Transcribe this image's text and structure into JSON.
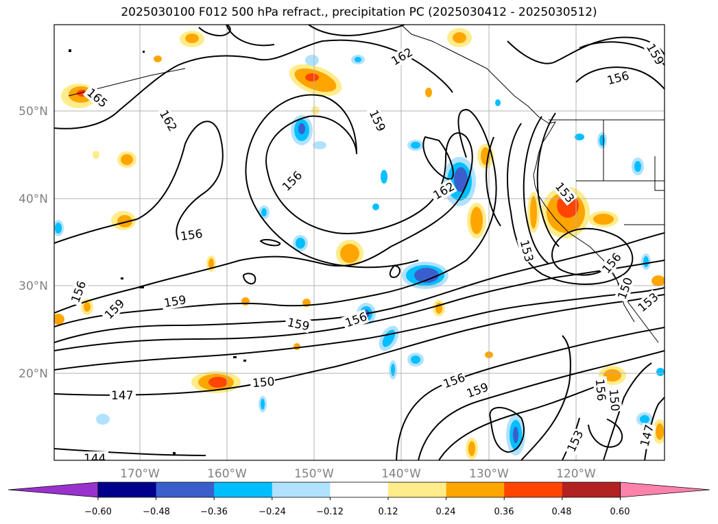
{
  "title": "2025030100 F012 500 hPa refract., precipitation PC (2025030412 - 2025030512)",
  "map": {
    "lat_labels": [
      "50°N",
      "40°N",
      "30°N",
      "20°N"
    ],
    "lon_labels": [
      "170°W",
      "160°W",
      "150°W",
      "140°W",
      "130°W",
      "120°W"
    ],
    "contour_labels": [
      "165",
      "162",
      "159",
      "156",
      "153",
      "150",
      "147",
      "144"
    ]
  },
  "colorbar": {
    "ticks": [
      "−0.60",
      "−0.48",
      "−0.36",
      "−0.24",
      "−0.12",
      "0.12",
      "0.24",
      "0.36",
      "0.48",
      "0.60"
    ],
    "colors": [
      "#9932cc",
      "#00008b",
      "#3a5fcd",
      "#00bfff",
      "#b0e2ff",
      "#ffffff",
      "#ffec8b",
      "#ffa500",
      "#ff4500",
      "#b22222",
      "#ff82ab"
    ]
  }
}
